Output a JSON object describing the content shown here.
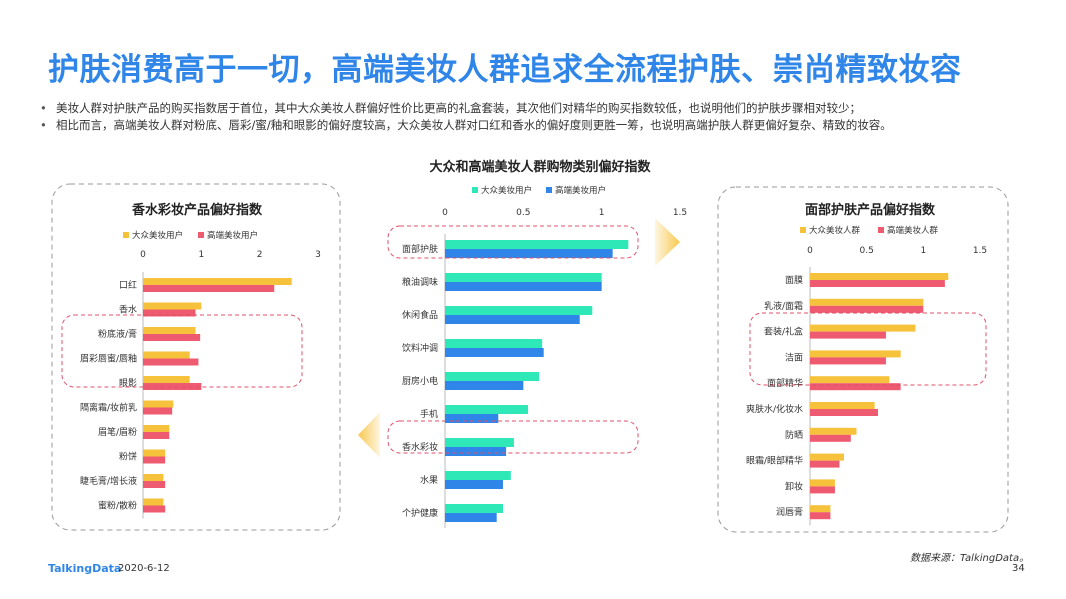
{
  "title": "护肤消费高于一切，高端美妆人群追求全流程护肤、崇尚精致妆容",
  "bullets": [
    "美妆人群对护肤产品的购买指数居于首位，其中大众美妆人群偏好性价比更高的礼盒套装，其次他们对精华的购买指数较低，也说明他们的护肤步骤相对较少；",
    "相比而言，高端美妆人群对粉底、唇彩/蜜/釉和眼影的偏好度较高，大众美妆人群对口红和香水的偏好度则更胜一筹，也说明高端护肤人群更偏好复杂、精致的妆容。"
  ],
  "colors": {
    "yellow": "#f7c23b",
    "pink": "#ee5a6f",
    "teal": "#2ee8b8",
    "blue": "#2f86e8",
    "title": "#2f86e8"
  },
  "footer": {
    "brand": "TalkingData",
    "date": "2020-6-12",
    "source": "数据来源：TalkingData。",
    "page": "34"
  },
  "chart_data": [
    {
      "type": "bar",
      "orientation": "horizontal",
      "title": "香水彩妆产品偏好指数",
      "categories": [
        "口红",
        "香水",
        "粉底液/膏",
        "眉彩唇蜜/唇釉",
        "眼影",
        "隔离霜/妆前乳",
        "眉笔/眉粉",
        "粉饼",
        "睫毛膏/增长液",
        "蜜粉/散粉"
      ],
      "series": [
        {
          "name": "大众美妆用户",
          "values": [
            2.55,
            1.0,
            0.9,
            0.8,
            0.8,
            0.52,
            0.45,
            0.38,
            0.35,
            0.35
          ]
        },
        {
          "name": "高端美妆用户",
          "values": [
            2.25,
            0.9,
            0.98,
            0.95,
            1.0,
            0.5,
            0.45,
            0.38,
            0.38,
            0.38
          ]
        }
      ],
      "xlim": [
        0,
        3
      ],
      "ticks": [
        "0",
        "1",
        "2",
        "3"
      ],
      "legend": "top"
    },
    {
      "type": "bar",
      "orientation": "horizontal",
      "title": "大众和高端美妆人群购物类别偏好指数",
      "categories": [
        "面部护肤",
        "粮油调味",
        "休闲食品",
        "饮料冲调",
        "厨房小电",
        "手机",
        "香水彩妆",
        "水果",
        "个护健康"
      ],
      "series": [
        {
          "name": "大众美妆用户",
          "values": [
            1.17,
            1.0,
            0.94,
            0.62,
            0.6,
            0.53,
            0.44,
            0.42,
            0.37
          ]
        },
        {
          "name": "高端美妆用户",
          "values": [
            1.07,
            1.0,
            0.86,
            0.63,
            0.5,
            0.34,
            0.39,
            0.37,
            0.33
          ]
        }
      ],
      "xlim": [
        0,
        1.5
      ],
      "ticks": [
        "0",
        "0.5",
        "1",
        "1.5"
      ],
      "legend": "top"
    },
    {
      "type": "bar",
      "orientation": "horizontal",
      "title": "面部护肤产品偏好指数",
      "categories": [
        "面膜",
        "乳液/面霜",
        "套装/礼盒",
        "洁面",
        "面部精华",
        "爽肤水/化妆水",
        "防晒",
        "眼霜/眼部精华",
        "卸妆",
        "润唇膏"
      ],
      "series": [
        {
          "name": "大众美妆人群",
          "values": [
            1.22,
            1.0,
            0.93,
            0.8,
            0.7,
            0.57,
            0.41,
            0.3,
            0.22,
            0.18
          ]
        },
        {
          "name": "高端美妆人群",
          "values": [
            1.19,
            1.0,
            0.67,
            0.67,
            0.8,
            0.6,
            0.36,
            0.26,
            0.22,
            0.18
          ]
        }
      ],
      "xlim": [
        0,
        1.5
      ],
      "ticks": [
        "0",
        "0.5",
        "1",
        "1.5"
      ],
      "legend": "top"
    }
  ]
}
